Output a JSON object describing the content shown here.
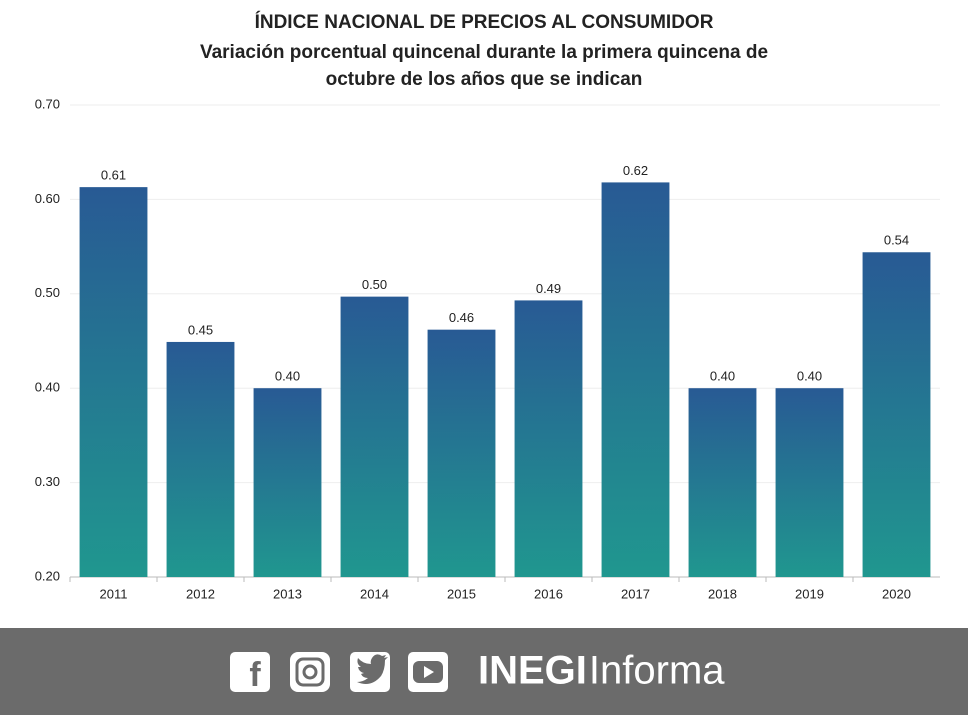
{
  "chart_data": {
    "type": "bar",
    "title": "ÍNDICE NACIONAL DE PRECIOS AL CONSUMIDOR",
    "subtitle": [
      "Variación porcentual quincenal durante la primera quincena de",
      "octubre de los años que se indican"
    ],
    "categories": [
      "2011",
      "2012",
      "2013",
      "2014",
      "2015",
      "2016",
      "2017",
      "2018",
      "2019",
      "2020"
    ],
    "values": [
      0.613,
      0.449,
      0.4,
      0.497,
      0.462,
      0.493,
      0.618,
      0.4,
      0.4,
      0.544
    ],
    "value_labels": [
      "0.61",
      "0.45",
      "0.40",
      "0.50",
      "0.46",
      "0.49",
      "0.62",
      "0.40",
      "0.40",
      "0.54"
    ],
    "color": "#285a94",
    "gradient_color": "#20978f",
    "ylim": [
      0.2,
      0.7
    ],
    "yticks": [
      {
        "value": 0.2,
        "label": "0.20"
      },
      {
        "value": 0.3,
        "label": "0.30"
      },
      {
        "value": 0.4,
        "label": "0.40"
      },
      {
        "value": 0.5,
        "label": "0.50"
      },
      {
        "value": 0.6,
        "label": "0.60"
      },
      {
        "value": 0.7,
        "label": "0.70"
      }
    ],
    "grid": true
  },
  "footer": {
    "brand": "INEGI",
    "brand_suffix": "Informa"
  }
}
